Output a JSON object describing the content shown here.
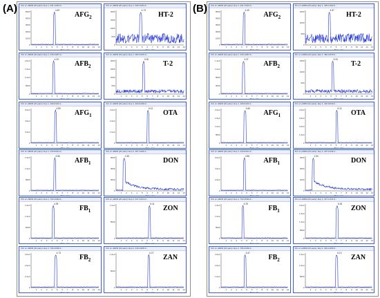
{
  "figure": {
    "groups": [
      {
        "label": "(A)",
        "panels": [
          {
            "analyte": "AFG",
            "sub": "2",
            "header": "XIC of +MRM (20 pairs): Exp 1, 331.1/313.0...",
            "rt": 4.49,
            "apex_label": "4.49",
            "noise": "flat",
            "y_ticks": [
              "5000",
              "4000",
              "3000",
              "2000",
              "1000",
              "0"
            ]
          },
          {
            "analyte": "HT-2",
            "sub": "",
            "header": "XIC of +MRM (20 pairs): Exp 1, 425.1/263.0...",
            "rt": 4.73,
            "apex_label": "4.73",
            "noise": "high",
            "y_ticks": [
              "2000",
              "1500",
              "1000",
              "500",
              "0"
            ]
          },
          {
            "analyte": "AFB",
            "sub": "2",
            "header": "XIC of +MRM (20 pairs): Exp 1, 315.1/287.0...",
            "rt": 4.33,
            "apex_label": "4.33",
            "noise": "flat",
            "y_ticks": [
              "2.0e4",
              "1.5e4",
              "1.0e4",
              "5000",
              "0"
            ]
          },
          {
            "analyte": "T-2",
            "sub": "",
            "header": "XIC of +MRM (20 pairs): Exp 1, 484.3/215.0...",
            "rt": 5.3,
            "apex_label": "5.30",
            "noise": "medium",
            "y_ticks": [
              "2000",
              "1500",
              "1000",
              "500",
              "0"
            ]
          },
          {
            "analyte": "AFG",
            "sub": "1",
            "header": "XIC of +MRM (20 pairs): Exp 1, 329.0/243.1...",
            "rt": 4.69,
            "apex_label": "4.69",
            "noise": "flat",
            "y_ticks": [
              "6.0e4",
              "4.0e4",
              "2.0e4",
              "0"
            ]
          },
          {
            "analyte": "OTA",
            "sub": "",
            "header": "XIC of +MRM (20 pairs): Exp 1, 404.0/239.0...",
            "rt": 6.12,
            "apex_label": "6.12",
            "noise": "flat",
            "y_ticks": [
              "3.0e4",
              "2.0e4",
              "1.0e4",
              "0"
            ]
          },
          {
            "analyte": "AFB",
            "sub": "1",
            "header": "XIC of +MRM (20 pairs): Exp 1, 313.0/241.0...",
            "rt": 4.56,
            "apex_label": "4.56",
            "noise": "flat",
            "y_ticks": [
              "1.5e4",
              "1.0e4",
              "5000",
              "0"
            ]
          },
          {
            "analyte": "DON",
            "sub": "",
            "header": "XIC of +MRM (20 pairs): Exp 2, 297.1/249.1...",
            "rt": 1.55,
            "apex_label": "1.55",
            "noise": "tail",
            "y_ticks": [
              "6000",
              "4000",
              "2000",
              "0"
            ]
          },
          {
            "analyte": "FB",
            "sub": "1",
            "header": "XIC of +MRM (20 pairs): Exp 1, 722.4/334.4...",
            "rt": 4.25,
            "apex_label": "4.25",
            "noise": "flat",
            "y_ticks": [
              "1.5e4",
              "1.0e4",
              "5000",
              "0"
            ]
          },
          {
            "analyte": "ZON",
            "sub": "",
            "header": "XIC of +MRM (20 pairs): Exp 2, 317.1/131.0...",
            "rt": 6.41,
            "apex_label": "6.41",
            "noise": "flat",
            "y_ticks": [
              "1.0e4",
              "5000",
              "0"
            ]
          },
          {
            "analyte": "FB",
            "sub": "2",
            "header": "XIC of +MRM (20 pairs): Exp 1, 706.4/336.4...",
            "rt": 4.73,
            "apex_label": "4.73",
            "noise": "flat",
            "y_ticks": [
              "3.0e4",
              "2.0e4",
              "1.0e4",
              "0"
            ]
          },
          {
            "analyte": "ZAN",
            "sub": "",
            "header": "XIC of +MRM (20 pairs): Exp 2, 319.1/205.0...",
            "rt": 6.27,
            "apex_label": "6.27",
            "noise": "flat",
            "y_ticks": [
              "1.0e4",
              "5000",
              "0"
            ]
          }
        ]
      },
      {
        "label": "(B)",
        "panels": [
          {
            "analyte": "AFG",
            "sub": "2",
            "header": "XIC of +MRM (20 pairs): Exp 1, 331.1/313.0...",
            "rt": 4.49,
            "apex_label": "4.49",
            "noise": "flat",
            "y_ticks": [
              "5000",
              "4000",
              "3000",
              "2000",
              "1000",
              "0"
            ]
          },
          {
            "analyte": "HT-2",
            "sub": "",
            "header": "XIC of +MRM (20 pairs): Exp 1, 425.1/263.0...",
            "rt": 4.67,
            "apex_label": "4.67",
            "noise": "high",
            "y_ticks": [
              "1500",
              "1000",
              "500",
              "0"
            ]
          },
          {
            "analyte": "AFB",
            "sub": "2",
            "header": "XIC of +MRM (20 pairs): Exp 1, 315.1/287.0...",
            "rt": 4.37,
            "apex_label": "4.37",
            "noise": "flat",
            "y_ticks": [
              "1.4e4",
              "1.0e4",
              "6000",
              "2000",
              "0"
            ]
          },
          {
            "analyte": "T-2",
            "sub": "",
            "header": "XIC of +MRM (20 pairs): Exp 1, 484.3/215.0...",
            "rt": 5.33,
            "apex_label": "5.33",
            "noise": "medium",
            "y_ticks": [
              "1500",
              "1000",
              "500",
              "0"
            ]
          },
          {
            "analyte": "AFG",
            "sub": "1",
            "header": "XIC of +MRM (20 pairs): Exp 1, 329.0/243.1...",
            "rt": 4.66,
            "apex_label": "4.66",
            "noise": "flat",
            "y_ticks": [
              "2.0e4",
              "1.5e4",
              "1.0e4",
              "5000",
              "0"
            ]
          },
          {
            "analyte": "OTA",
            "sub": "",
            "header": "XIC of +MRM (20 pairs): Exp 1, 404.0/239.0...",
            "rt": 6.12,
            "apex_label": "6.12",
            "noise": "flat",
            "y_ticks": [
              "4.0e4",
              "3.0e4",
              "2.0e4",
              "1.0e4",
              "0"
            ]
          },
          {
            "analyte": "AFB",
            "sub": "1",
            "header": "XIC of +MRM (20 pairs): Exp 1, 313.0/241.0...",
            "rt": 4.56,
            "apex_label": "4.56",
            "noise": "flat",
            "y_ticks": [
              "6.0e4",
              "4.0e4",
              "2.0e4",
              "0"
            ]
          },
          {
            "analyte": "DON",
            "sub": "",
            "header": "XIC of +MRM (20 pairs): Exp 2, 297.1/249.1...",
            "rt": 1.54,
            "apex_label": "1.54",
            "noise": "tail",
            "y_ticks": [
              "3000",
              "2000",
              "1000",
              "0"
            ]
          },
          {
            "analyte": "FB",
            "sub": "1",
            "header": "XIC of +MRM (20 pairs): Exp 1, 722.4/334.4...",
            "rt": 4.25,
            "apex_label": "4.25",
            "noise": "flat",
            "y_ticks": [
              "1.5e4",
              "1.0e4",
              "5000",
              "0"
            ]
          },
          {
            "analyte": "ZON",
            "sub": "",
            "header": "XIC of +MRM (20 pairs): Exp 2, 317.1/131.0...",
            "rt": 6.18,
            "apex_label": "6.18",
            "noise": "flat",
            "y_ticks": [
              "2.0e4",
              "1.5e4",
              "1.0e4",
              "5000",
              "0"
            ]
          },
          {
            "analyte": "FB",
            "sub": "2",
            "header": "XIC of +MRM (20 pairs): Exp 1, 706.4/336.4...",
            "rt": 4.67,
            "apex_label": "4.67",
            "noise": "flat",
            "y_ticks": [
              "3.0e4",
              "2.0e4",
              "1.0e4",
              "0"
            ]
          },
          {
            "analyte": "ZAN",
            "sub": "",
            "header": "XIC of +MRM (20 pairs): Exp 2, 319.1/205.0...",
            "rt": 6.1,
            "apex_label": "6.10",
            "noise": "flat",
            "y_ticks": [
              "1.5e4",
              "1.0e4",
              "5000",
              "0"
            ]
          }
        ]
      }
    ]
  },
  "chart_data": {
    "type": "line",
    "title": "",
    "xlabel": "Time, min",
    "ylabel": "Intensity, cps",
    "xlim": [
      0,
      13
    ],
    "x_ticks": [
      "1",
      "2",
      "3",
      "4",
      "5",
      "6",
      "7",
      "8",
      "9",
      "10",
      "11",
      "12",
      "13"
    ],
    "grid": false,
    "legend": "none",
    "series": [
      {
        "name": "AFG2",
        "group": "(A)",
        "peak_rt": 4.49
      },
      {
        "name": "HT-2",
        "group": "(A)",
        "peak_rt": 4.73
      },
      {
        "name": "AFB2",
        "group": "(A)",
        "peak_rt": 4.33
      },
      {
        "name": "T-2",
        "group": "(A)",
        "peak_rt": 5.3
      },
      {
        "name": "AFG1",
        "group": "(A)",
        "peak_rt": 4.69
      },
      {
        "name": "OTA",
        "group": "(A)",
        "peak_rt": 6.12
      },
      {
        "name": "AFB1",
        "group": "(A)",
        "peak_rt": 4.56
      },
      {
        "name": "DON",
        "group": "(A)",
        "peak_rt": 1.55
      },
      {
        "name": "FB1",
        "group": "(A)",
        "peak_rt": 4.25
      },
      {
        "name": "ZON",
        "group": "(A)",
        "peak_rt": 6.41
      },
      {
        "name": "FB2",
        "group": "(A)",
        "peak_rt": 4.73
      },
      {
        "name": "ZAN",
        "group": "(A)",
        "peak_rt": 6.27
      },
      {
        "name": "AFG2",
        "group": "(B)",
        "peak_rt": 4.49
      },
      {
        "name": "HT-2",
        "group": "(B)",
        "peak_rt": 4.67
      },
      {
        "name": "AFB2",
        "group": "(B)",
        "peak_rt": 4.37
      },
      {
        "name": "T-2",
        "group": "(B)",
        "peak_rt": 5.33
      },
      {
        "name": "AFG1",
        "group": "(B)",
        "peak_rt": 4.66
      },
      {
        "name": "OTA",
        "group": "(B)",
        "peak_rt": 6.12
      },
      {
        "name": "AFB1",
        "group": "(B)",
        "peak_rt": 4.56
      },
      {
        "name": "DON",
        "group": "(B)",
        "peak_rt": 1.54
      },
      {
        "name": "FB1",
        "group": "(B)",
        "peak_rt": 4.25
      },
      {
        "name": "ZON",
        "group": "(B)",
        "peak_rt": 6.18
      },
      {
        "name": "FB2",
        "group": "(B)",
        "peak_rt": 4.67
      },
      {
        "name": "ZAN",
        "group": "(B)",
        "peak_rt": 6.1
      }
    ],
    "colors": {
      "trace": "#2437d6",
      "frame": "#3b5bd6",
      "header_bg": "#e9eef9"
    }
  }
}
